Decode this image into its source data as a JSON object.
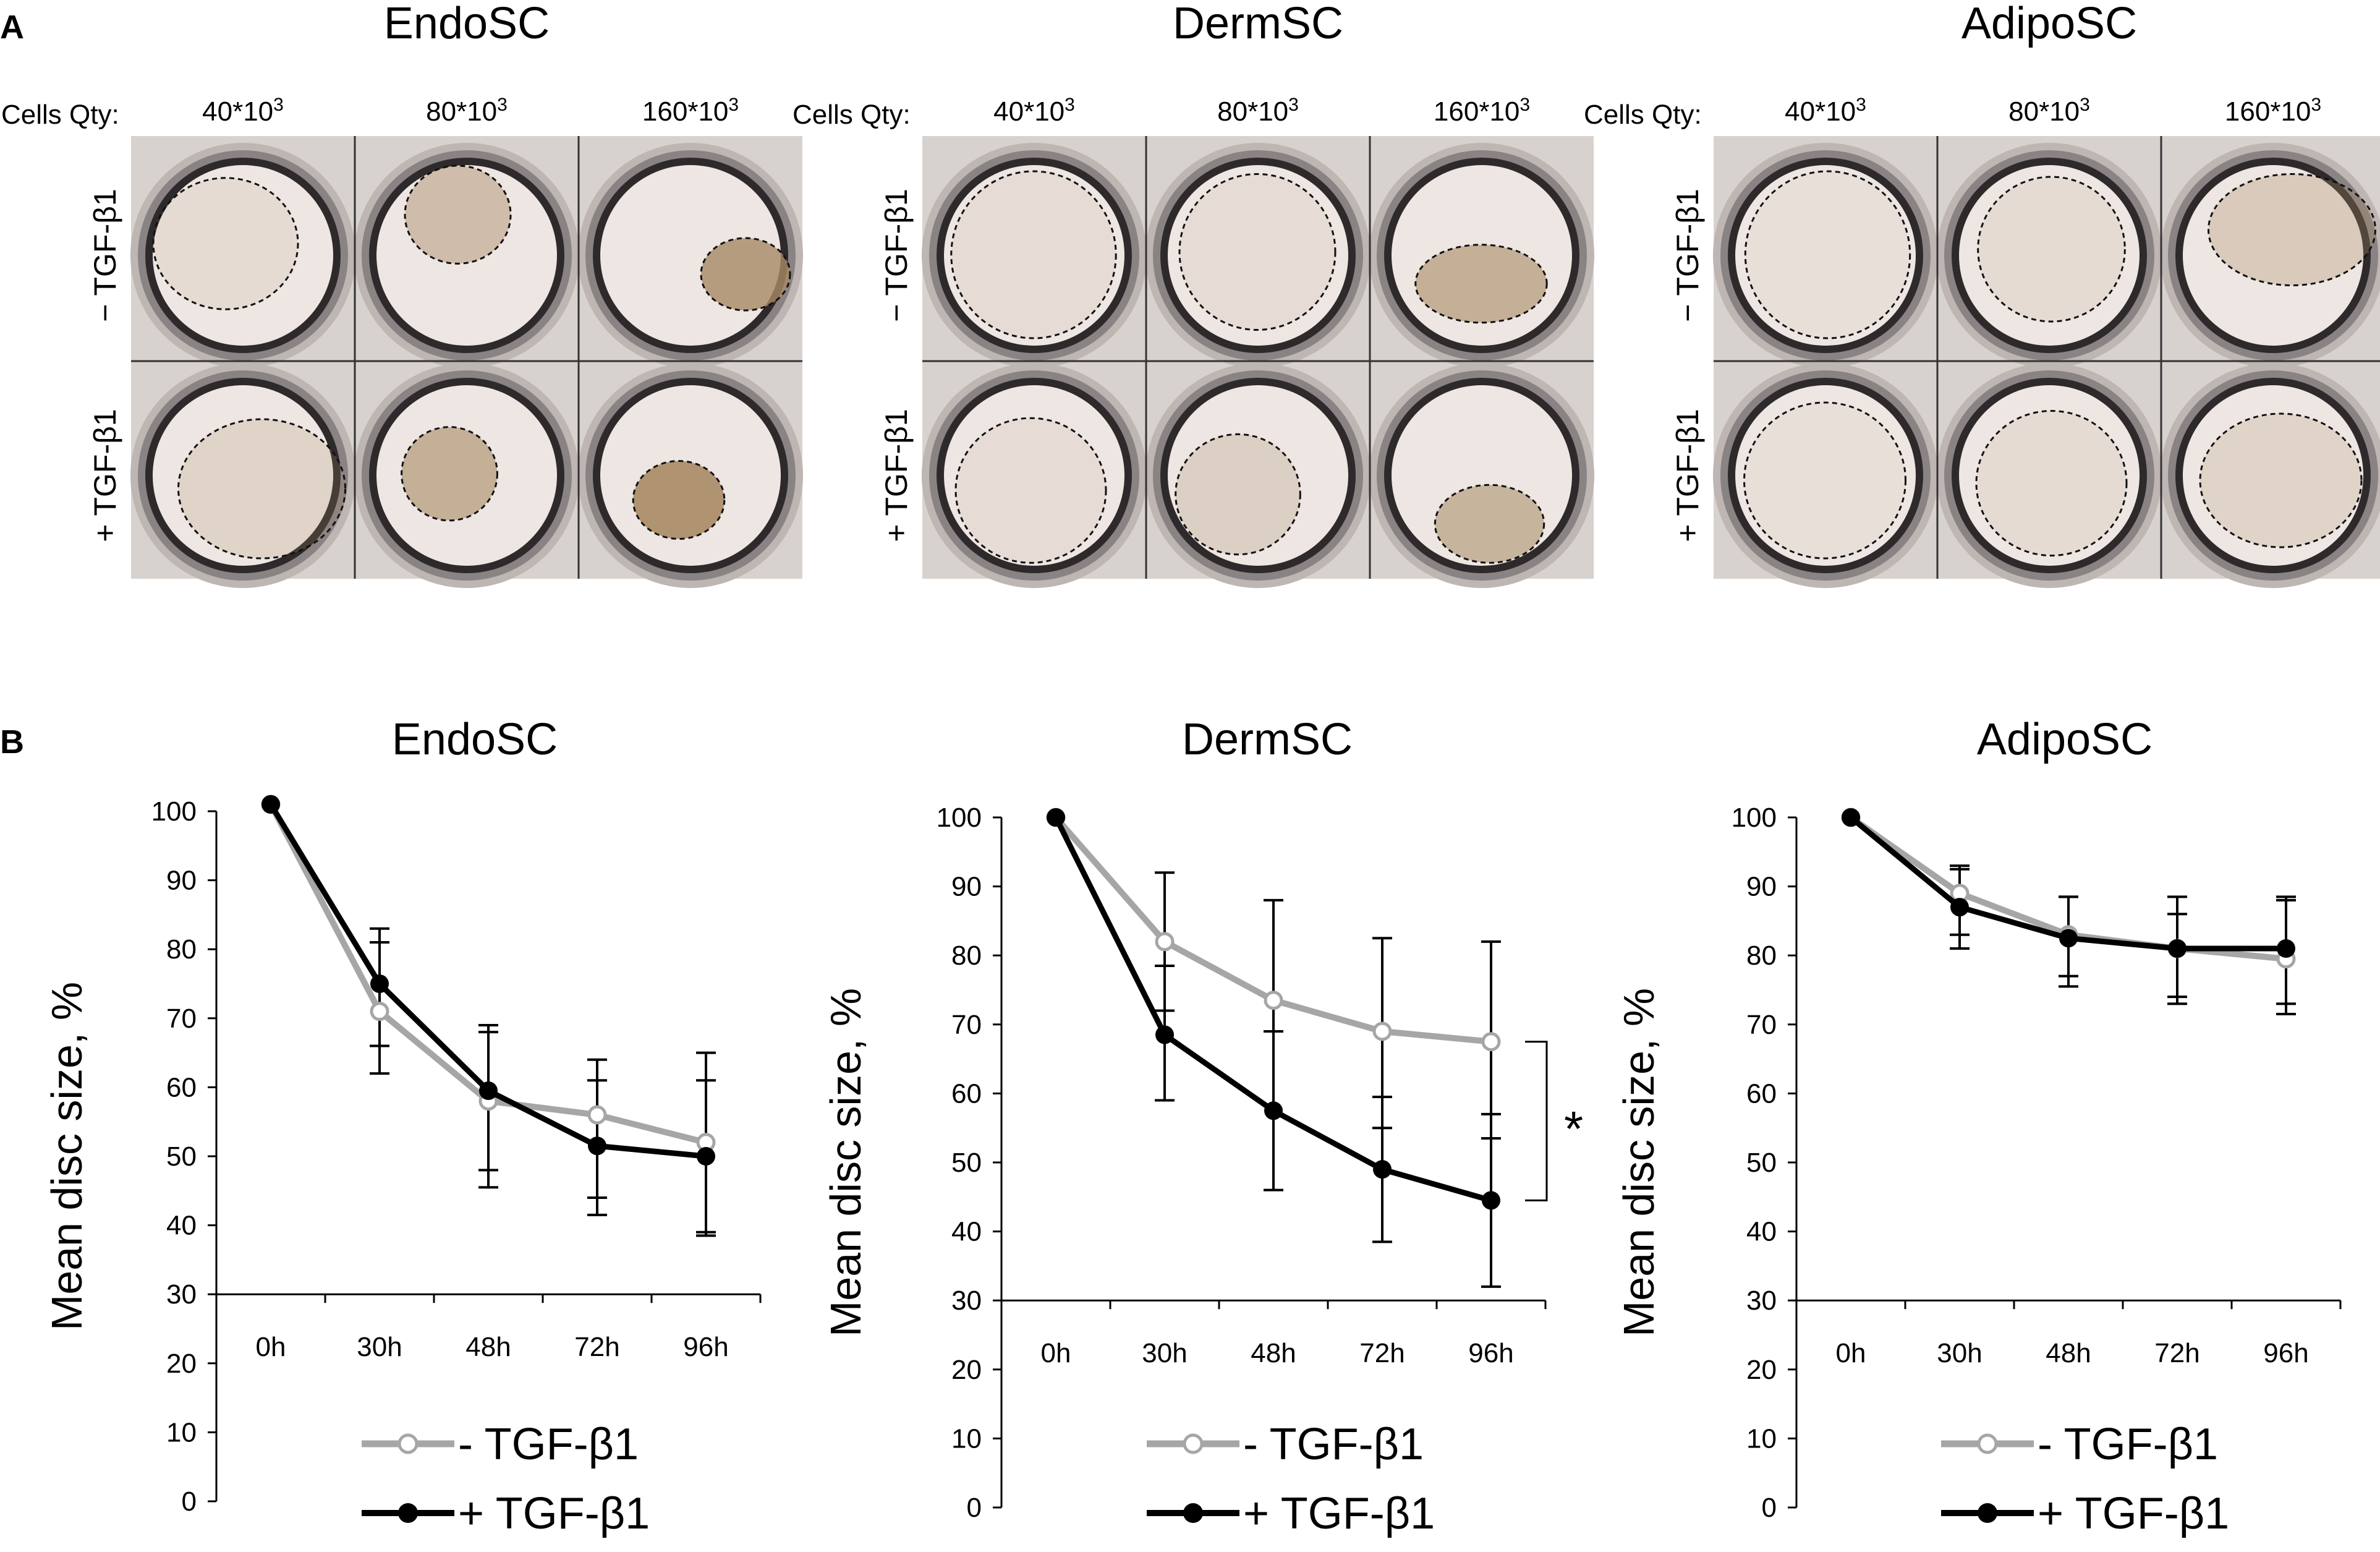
{
  "panel_a": {
    "letter": "A",
    "cells_qty_label": "Cells Qty:",
    "row_labels": [
      "− TGF-β1",
      "+ TGF-β1"
    ],
    "groups": [
      {
        "title": "EndoSC",
        "columns": [
          {
            "base": "40*10",
            "exp": "3"
          },
          {
            "base": "80*10",
            "exp": "3"
          },
          {
            "base": "160*10",
            "exp": "3"
          }
        ]
      },
      {
        "title": "DermSC",
        "columns": [
          {
            "base": "40*10",
            "exp": "3"
          },
          {
            "base": "80*10",
            "exp": "3"
          },
          {
            "base": "160*10",
            "exp": "3"
          }
        ]
      },
      {
        "title": "AdipoSC",
        "columns": [
          {
            "base": "40*10",
            "exp": "3"
          },
          {
            "base": "80*10",
            "exp": "3"
          },
          {
            "base": "160*10",
            "exp": "3"
          }
        ]
      }
    ],
    "colors": {
      "well_rim": "#2e2a2b",
      "well_floor": "#eee6e3",
      "tissue": "#a88a64",
      "plate": "#d8d2cf"
    }
  },
  "panel_b": {
    "letter": "B"
  },
  "chart_data": [
    {
      "type": "line",
      "title": "EndoSC",
      "xlabel": "",
      "ylabel": "Mean disc size, %",
      "categories": [
        "0h",
        "30h",
        "48h",
        "72h",
        "96h"
      ],
      "ylim": [
        0,
        100
      ],
      "yticks": [
        0,
        10,
        20,
        30,
        40,
        50,
        60,
        70,
        80,
        90,
        100
      ],
      "series": [
        {
          "name": "- TGF-β1",
          "color": "#a6a6a6",
          "marker": "open-circle",
          "values": [
            101,
            71,
            58,
            56,
            52
          ],
          "err_upper": [
            101,
            81,
            68,
            64,
            65
          ],
          "err_lower": [
            101,
            62,
            48,
            44,
            39
          ]
        },
        {
          "name": "+ TGF-β1",
          "color": "#000000",
          "marker": "filled-circle",
          "values": [
            101,
            75,
            59.5,
            51.5,
            50
          ],
          "err_upper": [
            101,
            83,
            69,
            61,
            61
          ],
          "err_lower": [
            101,
            66,
            45.5,
            41.5,
            38.5
          ]
        }
      ],
      "annotation": null
    },
    {
      "type": "line",
      "title": "DermSC",
      "xlabel": "",
      "ylabel": "Mean disc size, %",
      "categories": [
        "0h",
        "30h",
        "48h",
        "72h",
        "96h"
      ],
      "ylim": [
        0,
        100
      ],
      "yticks": [
        0,
        10,
        20,
        30,
        40,
        50,
        60,
        70,
        80,
        90,
        100
      ],
      "series": [
        {
          "name": "- TGF-β1",
          "color": "#a6a6a6",
          "marker": "open-circle",
          "values": [
            100,
            82,
            73.5,
            69,
            67.5
          ],
          "err_upper": [
            100,
            92,
            88,
            82.5,
            82
          ],
          "err_lower": [
            100,
            72,
            69,
            55,
            53.5
          ]
        },
        {
          "name": "+ TGF-β1",
          "color": "#000000",
          "marker": "filled-circle",
          "values": [
            100,
            68.5,
            57.5,
            49,
            44.5
          ],
          "err_upper": [
            100,
            78.5,
            69,
            59.5,
            57
          ],
          "err_lower": [
            100,
            59,
            46,
            38.5,
            32
          ]
        }
      ],
      "annotation": {
        "text": "*",
        "between_series": [
          0,
          1
        ],
        "at_category": "96h"
      }
    },
    {
      "type": "line",
      "title": "AdipoSC",
      "xlabel": "",
      "ylabel": "Mean disc size, %",
      "categories": [
        "0h",
        "30h",
        "48h",
        "72h",
        "96h"
      ],
      "ylim": [
        0,
        100
      ],
      "yticks": [
        0,
        10,
        20,
        30,
        40,
        50,
        60,
        70,
        80,
        90,
        100
      ],
      "series": [
        {
          "name": "- TGF-β1",
          "color": "#a6a6a6",
          "marker": "open-circle",
          "values": [
            100,
            89,
            83,
            81,
            79.5
          ],
          "err_upper": [
            100,
            93,
            88.5,
            88.5,
            88
          ],
          "err_lower": [
            100,
            83,
            77,
            74,
            71.5
          ]
        },
        {
          "name": "+ TGF-β1",
          "color": "#000000",
          "marker": "filled-circle",
          "values": [
            100,
            87,
            82.5,
            81,
            81
          ],
          "err_upper": [
            100,
            92.5,
            88.5,
            86,
            88.5
          ],
          "err_lower": [
            100,
            81,
            75.5,
            73,
            73
          ]
        }
      ],
      "annotation": null
    }
  ]
}
